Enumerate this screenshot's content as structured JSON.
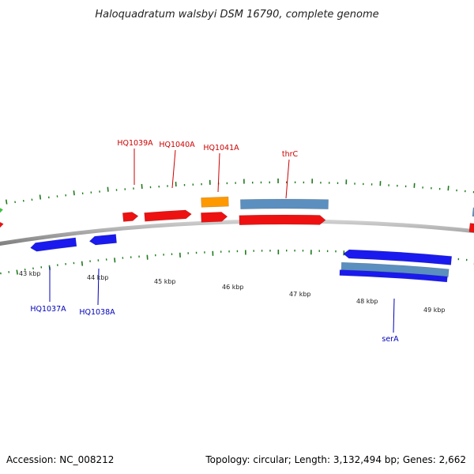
{
  "title": "Haloquadratum walsbyi DSM 16790, complete genome",
  "footer": {
    "accession": "Accession: NC_008212",
    "summary": "Topology: circular; Length: 3,132,494 bp; Genes: 2,662"
  },
  "colors": {
    "forward_label": "#cc0000",
    "reverse_label": "#0000bb",
    "backbone": "#8a8a8a",
    "tick": "#1e7a1e"
  },
  "chart_data": {
    "type": "genome-map",
    "position_unit": "kbp",
    "ticks": [
      "43 kbp",
      "44 kbp",
      "45 kbp",
      "46 kbp",
      "47 kbp",
      "48 kbp",
      "49 kbp"
    ],
    "labels": [
      {
        "text": "HQ1039A",
        "strand": "forward"
      },
      {
        "text": "HQ1040A",
        "strand": "forward"
      },
      {
        "text": "HQ1041A",
        "strand": "forward"
      },
      {
        "text": "thrC",
        "strand": "forward"
      },
      {
        "text": "HQ1037A",
        "strand": "reverse"
      },
      {
        "text": "HQ1038A",
        "strand": "reverse"
      },
      {
        "text": "serA",
        "strand": "reverse"
      }
    ],
    "features": [
      {
        "strand": "forward",
        "color": "#33cc33"
      },
      {
        "strand": "forward",
        "color": "#ee1111"
      },
      {
        "strand": "forward",
        "color": "#ee1111"
      },
      {
        "strand": "forward",
        "color": "#ee1111"
      },
      {
        "strand": "forward",
        "color": "#ff9900"
      },
      {
        "strand": "forward",
        "color": "#ee1111"
      },
      {
        "strand": "forward",
        "color": "#5b8fbf"
      },
      {
        "strand": "forward",
        "color": "#ee1111"
      },
      {
        "strand": "forward",
        "color": "#ee1111"
      },
      {
        "strand": "forward",
        "color": "#5b8fbf"
      },
      {
        "strand": "reverse",
        "color": "#1a1aee"
      },
      {
        "strand": "reverse",
        "color": "#1a1aee"
      },
      {
        "strand": "reverse",
        "color": "#1a1aee"
      },
      {
        "strand": "reverse",
        "color": "#5b8fbf"
      },
      {
        "strand": "reverse",
        "color": "#1a1aee"
      }
    ]
  }
}
